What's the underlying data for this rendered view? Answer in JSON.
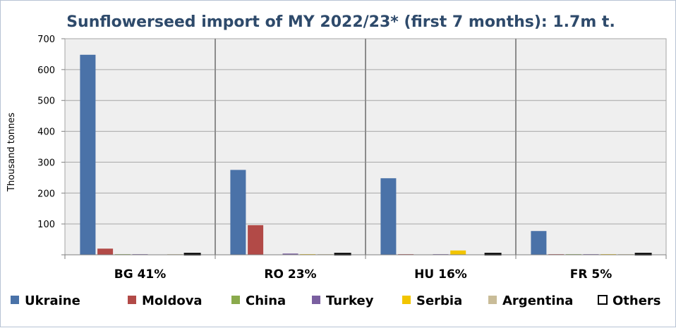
{
  "chart_data": {
    "type": "bar",
    "title": "Sunflowerseed import of MY 2022/23* (first 7 months):  1.7m t.",
    "xlabel": "",
    "ylabel": "Thousand  tonnes",
    "ylim": [
      0,
      700
    ],
    "yticks": [
      100,
      200,
      300,
      400,
      500,
      600,
      700
    ],
    "grid": true,
    "legend_position": "bottom",
    "categories": [
      "BG 41%",
      "RO 23%",
      "HU 16%",
      "FR 5%"
    ],
    "series": [
      {
        "name": "Ukraine",
        "color": "#4a72a8",
        "values": [
          648,
          275,
          248,
          77
        ]
      },
      {
        "name": "Moldova",
        "color": "#b24a47",
        "values": [
          20,
          96,
          2,
          2
        ]
      },
      {
        "name": "China",
        "color": "#8aaa4c",
        "values": [
          2,
          0,
          0,
          2
        ]
      },
      {
        "name": "Turkey",
        "color": "#7a5fa0",
        "values": [
          2,
          4,
          2,
          2
        ]
      },
      {
        "name": "Serbia",
        "color": "#f2c500",
        "values": [
          0,
          2,
          14,
          2
        ]
      },
      {
        "name": "Argentina",
        "color": "#c9bc98",
        "values": [
          2,
          2,
          0,
          2
        ]
      },
      {
        "name": "Others",
        "color": "#000000",
        "values": [
          4,
          4,
          4,
          4
        ]
      }
    ]
  }
}
